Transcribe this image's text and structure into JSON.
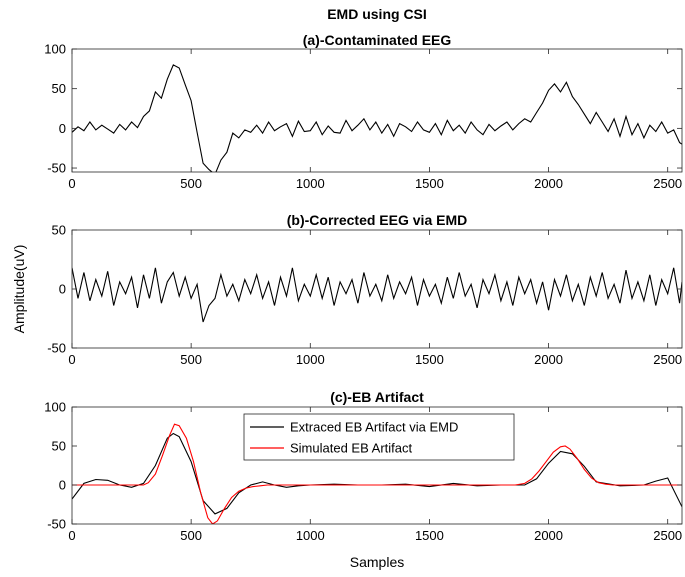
{
  "figure": {
    "suptitle": "EMD using CSI",
    "ylabel": "Amplitude(uV)",
    "xlabel": "Samples"
  },
  "chart_data": [
    {
      "type": "line",
      "title": "(a)-Contaminated EEG",
      "xlabel": "",
      "ylabel": "",
      "xlim": [
        0,
        2560
      ],
      "ylim": [
        -55,
        100
      ],
      "xticks": [
        0,
        500,
        1000,
        1500,
        2000,
        2500
      ],
      "yticks": [
        -50,
        0,
        50,
        100
      ],
      "grid": false,
      "series": [
        {
          "color": "#000000",
          "x": [
            0,
            25,
            50,
            75,
            100,
            125,
            150,
            175,
            200,
            225,
            250,
            275,
            300,
            325,
            350,
            375,
            400,
            425,
            450,
            475,
            500,
            525,
            550,
            575,
            600,
            625,
            650,
            675,
            700,
            725,
            750,
            775,
            800,
            825,
            850,
            875,
            900,
            925,
            950,
            975,
            1000,
            1025,
            1050,
            1075,
            1100,
            1125,
            1150,
            1175,
            1200,
            1225,
            1250,
            1275,
            1300,
            1325,
            1350,
            1375,
            1400,
            1425,
            1450,
            1475,
            1500,
            1525,
            1550,
            1575,
            1600,
            1625,
            1650,
            1675,
            1700,
            1725,
            1750,
            1775,
            1800,
            1825,
            1850,
            1875,
            1900,
            1925,
            1950,
            1975,
            2000,
            2025,
            2050,
            2075,
            2100,
            2125,
            2150,
            2175,
            2200,
            2225,
            2250,
            2275,
            2300,
            2325,
            2350,
            2375,
            2400,
            2425,
            2450,
            2475,
            2500,
            2525,
            2550,
            2560
          ],
          "y": [
            -5,
            2,
            -3,
            8,
            -2,
            4,
            -1,
            -6,
            5,
            -2,
            8,
            1,
            15,
            22,
            46,
            38,
            62,
            80,
            76,
            55,
            35,
            -5,
            -44,
            -52,
            -58,
            -40,
            -30,
            -6,
            -12,
            -2,
            -5,
            4,
            -6,
            8,
            -3,
            2,
            6,
            -10,
            9,
            -4,
            -3,
            8,
            -8,
            3,
            -5,
            -6,
            10,
            -3,
            4,
            12,
            -2,
            8,
            -6,
            5,
            -10,
            6,
            2,
            -4,
            8,
            -2,
            -5,
            6,
            -8,
            10,
            -3,
            4,
            -6,
            8,
            -2,
            -8,
            5,
            -3,
            3,
            8,
            -2,
            6,
            12,
            8,
            20,
            32,
            48,
            56,
            46,
            58,
            40,
            30,
            18,
            6,
            20,
            8,
            -4,
            12,
            -10,
            15,
            -8,
            6,
            -12,
            4,
            -4,
            8,
            -6,
            -2,
            -18,
            -20
          ]
        }
      ]
    },
    {
      "type": "line",
      "title": "(b)-Corrected EEG via EMD",
      "xlabel": "",
      "ylabel": "",
      "xlim": [
        0,
        2560
      ],
      "ylim": [
        -50,
        50
      ],
      "xticks": [
        0,
        500,
        1000,
        1500,
        2000,
        2500
      ],
      "yticks": [
        -50,
        0,
        50
      ],
      "grid": false,
      "series": [
        {
          "color": "#000000",
          "x": [
            0,
            25,
            50,
            75,
            100,
            125,
            150,
            175,
            200,
            225,
            250,
            275,
            300,
            325,
            350,
            375,
            400,
            425,
            450,
            475,
            500,
            525,
            550,
            575,
            600,
            625,
            650,
            675,
            700,
            725,
            750,
            775,
            800,
            825,
            850,
            875,
            900,
            925,
            950,
            975,
            1000,
            1025,
            1050,
            1075,
            1100,
            1125,
            1150,
            1175,
            1200,
            1225,
            1250,
            1275,
            1300,
            1325,
            1350,
            1375,
            1400,
            1425,
            1450,
            1475,
            1500,
            1525,
            1550,
            1575,
            1600,
            1625,
            1650,
            1675,
            1700,
            1725,
            1750,
            1775,
            1800,
            1825,
            1850,
            1875,
            1900,
            1925,
            1950,
            1975,
            2000,
            2025,
            2050,
            2075,
            2100,
            2125,
            2150,
            2175,
            2200,
            2225,
            2250,
            2275,
            2300,
            2325,
            2350,
            2375,
            2400,
            2425,
            2450,
            2475,
            2500,
            2525,
            2550,
            2560
          ],
          "y": [
            18,
            -8,
            14,
            -10,
            8,
            -6,
            15,
            -14,
            6,
            -4,
            10,
            -16,
            12,
            -8,
            18,
            -12,
            6,
            14,
            -6,
            10,
            -8,
            4,
            -28,
            -14,
            -8,
            12,
            -6,
            4,
            -10,
            8,
            -4,
            12,
            -8,
            6,
            -14,
            10,
            -6,
            18,
            -10,
            4,
            -6,
            12,
            -8,
            10,
            -14,
            6,
            -4,
            8,
            -12,
            14,
            -6,
            4,
            -10,
            12,
            -8,
            6,
            -4,
            10,
            -14,
            8,
            -6,
            4,
            -12,
            10,
            -8,
            14,
            -6,
            4,
            -16,
            8,
            -4,
            12,
            -10,
            6,
            -14,
            10,
            -4,
            8,
            -12,
            6,
            -18,
            8,
            -6,
            12,
            -10,
            4,
            -14,
            10,
            -6,
            14,
            -8,
            4,
            -12,
            16,
            -8,
            6,
            -10,
            12,
            -14,
            8,
            -4,
            18,
            -12,
            6
          ]
        }
      ]
    },
    {
      "type": "line",
      "title": "(c)-EB Artifact",
      "xlabel": "Samples",
      "ylabel": "",
      "xlim": [
        0,
        2560
      ],
      "ylim": [
        -50,
        100
      ],
      "xticks": [
        0,
        500,
        1000,
        1500,
        2000,
        2500
      ],
      "yticks": [
        -50,
        0,
        50,
        100
      ],
      "grid": false,
      "legend_position": "top-center",
      "series": [
        {
          "name": "Extraced EB Artifact via EMD",
          "color": "#000000",
          "x": [
            0,
            50,
            100,
            150,
            200,
            250,
            300,
            350,
            400,
            425,
            450,
            500,
            550,
            600,
            650,
            700,
            750,
            800,
            850,
            900,
            950,
            1000,
            1100,
            1200,
            1300,
            1400,
            1500,
            1600,
            1700,
            1800,
            1900,
            1950,
            2000,
            2050,
            2100,
            2150,
            2200,
            2300,
            2400,
            2450,
            2500,
            2560
          ],
          "y": [
            -18,
            2,
            7,
            6,
            0,
            -3,
            2,
            25,
            60,
            66,
            62,
            30,
            -20,
            -37,
            -30,
            -10,
            0,
            4,
            0,
            -3,
            -1,
            0,
            1,
            0,
            0,
            1,
            -2,
            2,
            -1,
            0,
            0,
            8,
            28,
            43,
            40,
            24,
            4,
            -1,
            0,
            5,
            9,
            -28
          ]
        },
        {
          "name": "Simulated EB Artifact",
          "color": "#ff0000",
          "x": [
            0,
            300,
            320,
            350,
            380,
            410,
            430,
            450,
            480,
            510,
            540,
            570,
            590,
            610,
            640,
            670,
            700,
            730,
            760,
            790,
            820,
            850,
            2500,
            1860,
            1900,
            1930,
            1960,
            1990,
            2020,
            2050,
            2070,
            2090,
            2120,
            2150,
            2180,
            2210,
            2240,
            2270,
            2560
          ],
          "y": [
            0,
            0,
            3,
            14,
            38,
            64,
            78,
            76,
            60,
            30,
            -10,
            -42,
            -50,
            -46,
            -30,
            -16,
            -8,
            -4,
            -2,
            -1,
            0,
            0,
            0,
            0,
            2,
            8,
            18,
            30,
            42,
            49,
            50,
            46,
            34,
            20,
            9,
            3,
            1,
            0,
            0
          ]
        }
      ]
    }
  ]
}
